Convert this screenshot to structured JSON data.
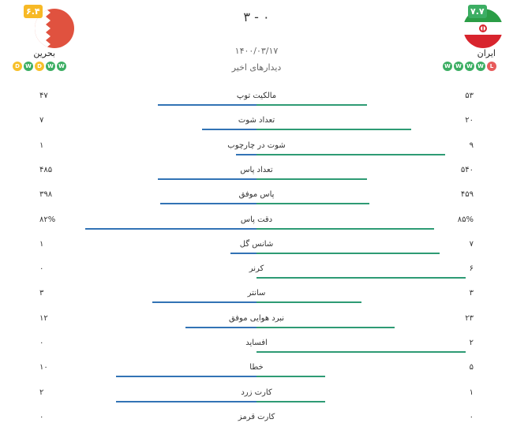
{
  "home": {
    "name": "ایران",
    "rating": "۷.۷",
    "form": [
      "L",
      "W",
      "W",
      "W",
      "W"
    ],
    "flag_colors": {
      "top": "#2b9d46",
      "middle": "#ffffff",
      "bottom": "#d8242d",
      "emblem": "#d8242d"
    }
  },
  "away": {
    "name": "بحرین",
    "rating": "۶.۴",
    "form": [
      "W",
      "W",
      "D",
      "W",
      "D"
    ],
    "flag_colors": {
      "main": "#e0523f",
      "white": "#ffffff"
    }
  },
  "match": {
    "score": "۳ - ۰",
    "date": "۱۴۰۰/۰۳/۱۷",
    "recent_label": "دیدارهای اخیر"
  },
  "colors": {
    "home_bar": "#2e9b74",
    "away_bar": "#3273b5",
    "win": "#3cae63",
    "loss": "#e85b5b",
    "draw": "#f7c02a"
  },
  "stats": [
    {
      "label": "مالکیت توپ",
      "home": "۵۳",
      "away": "۴۷",
      "home_ratio": 0.53,
      "away_ratio": 0.47
    },
    {
      "label": "تعداد شوت",
      "home": "۲۰",
      "away": "۷",
      "home_ratio": 0.74,
      "away_ratio": 0.26
    },
    {
      "label": "شوت در چارچوب",
      "home": "۹",
      "away": "۱",
      "home_ratio": 0.9,
      "away_ratio": 0.1
    },
    {
      "label": "تعداد پاس",
      "home": "۵۴۰",
      "away": "۴۸۵",
      "home_ratio": 0.53,
      "away_ratio": 0.47
    },
    {
      "label": "پاس موفق",
      "home": "۴۵۹",
      "away": "۳۹۸",
      "home_ratio": 0.54,
      "away_ratio": 0.46
    },
    {
      "label": "دقت پاس",
      "home": "۸۵%",
      "away": "۸۲%",
      "home_ratio": 0.85,
      "away_ratio": 0.82
    },
    {
      "label": "شانس گل",
      "home": "۷",
      "away": "۱",
      "home_ratio": 0.875,
      "away_ratio": 0.125
    },
    {
      "label": "کرنر",
      "home": "۶",
      "away": "۰",
      "home_ratio": 1.0,
      "away_ratio": 0.0
    },
    {
      "label": "سانتر",
      "home": "۳",
      "away": "۳",
      "home_ratio": 0.5,
      "away_ratio": 0.5
    },
    {
      "label": "نبرد هوایی موفق",
      "home": "۲۳",
      "away": "۱۲",
      "home_ratio": 0.66,
      "away_ratio": 0.34
    },
    {
      "label": "افساید",
      "home": "۲",
      "away": "۰",
      "home_ratio": 1.0,
      "away_ratio": 0.0
    },
    {
      "label": "خطا",
      "home": "۵",
      "away": "۱۰",
      "home_ratio": 0.33,
      "away_ratio": 0.67
    },
    {
      "label": "کارت زرد",
      "home": "۱",
      "away": "۲",
      "home_ratio": 0.33,
      "away_ratio": 0.67
    },
    {
      "label": "کارت قرمز",
      "home": "۰",
      "away": "۰",
      "home_ratio": 0.0,
      "away_ratio": 0.0
    }
  ]
}
